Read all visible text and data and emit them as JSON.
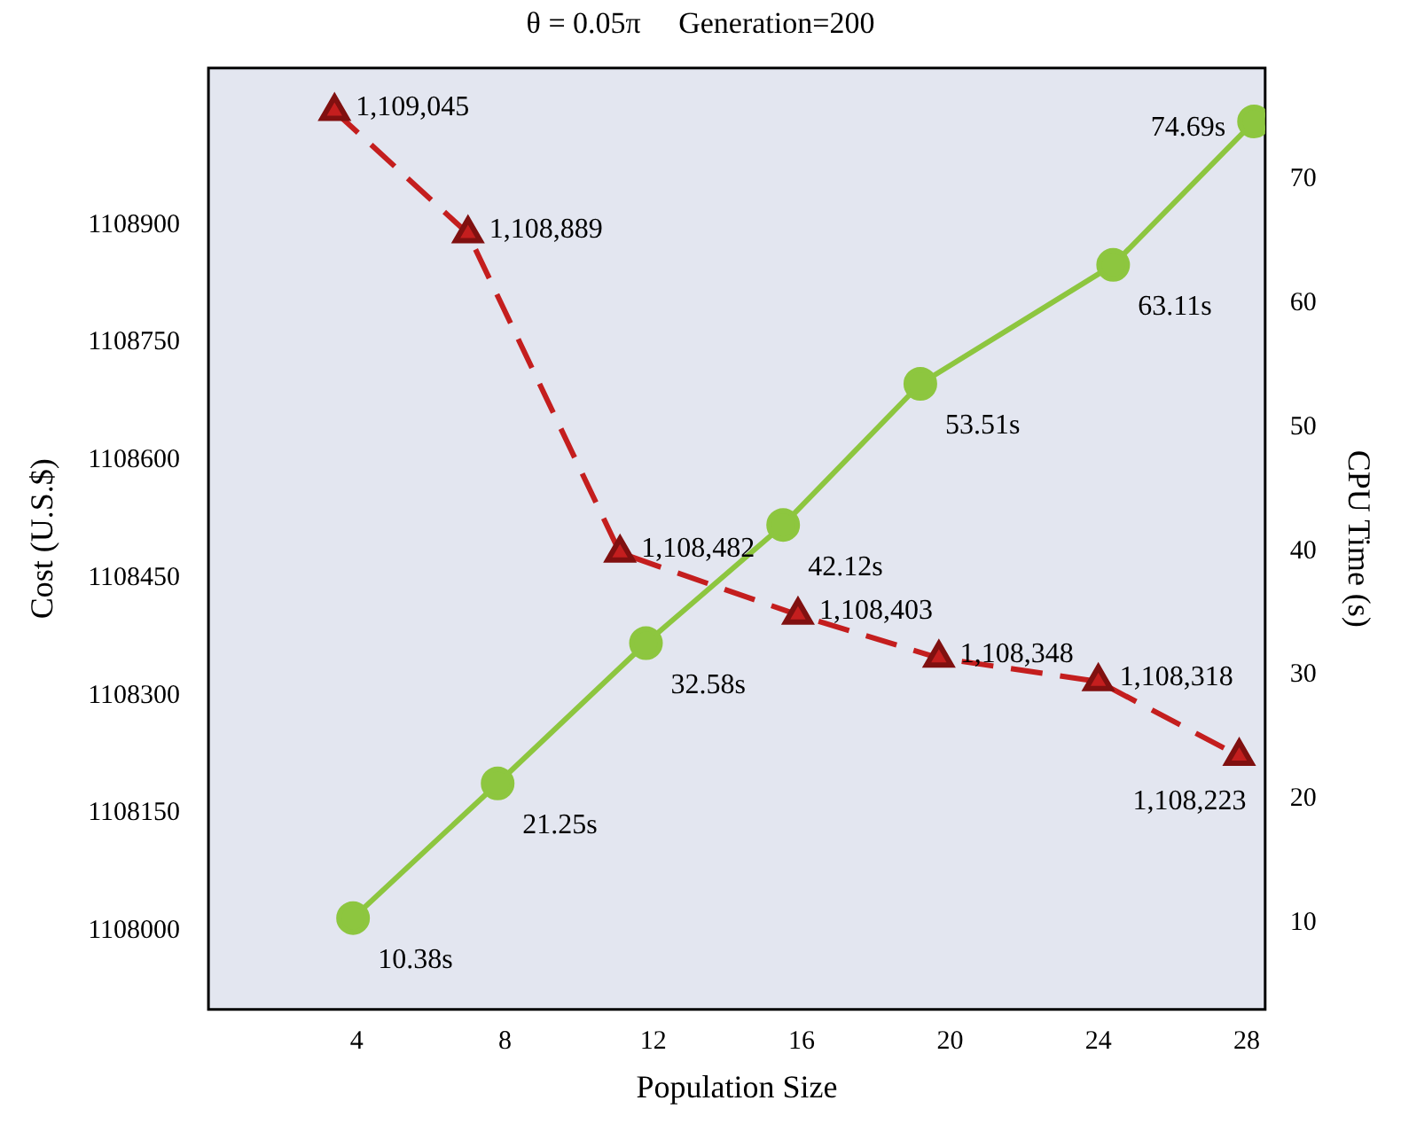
{
  "chart_data": {
    "type": "line",
    "title": "θ = 0.05π     Generation=200",
    "xlabel": "Population Size",
    "ylabel": "Cost (U.S.$)",
    "y2label": "CPU Time (s)",
    "xlim": [
      0,
      28.5
    ],
    "xticks": [
      4,
      8,
      12,
      16,
      20,
      24,
      28
    ],
    "ylim": [
      1107900,
      1109100
    ],
    "yticks": [
      1108000,
      1108150,
      1108300,
      1108450,
      1108600,
      1108750,
      1108900
    ],
    "y2lim": [
      3,
      79
    ],
    "y2ticks": [
      10,
      20,
      30,
      40,
      50,
      60,
      70
    ],
    "grid": false,
    "legend": false,
    "series": [
      {
        "color": "#c41e1e",
        "marker": "triangle",
        "line_style": "dashed",
        "x": [
          3.4,
          7.0,
          11.1,
          15.9,
          19.7,
          24.0,
          27.8
        ],
        "values": [
          1109045,
          1108889,
          1108482,
          1108403,
          1108348,
          1108318,
          1108223
        ],
        "value_labels": [
          "1,109,045",
          "1,108,889",
          "1,108,482",
          "1,108,403",
          "1,108,348",
          "1,108,318",
          "1,108,223"
        ]
      },
      {
        "color": "#8dc63f",
        "marker": "circle",
        "line_style": "solid",
        "axis": "y2",
        "x": [
          3.9,
          7.8,
          11.8,
          15.5,
          19.2,
          24.4,
          28.2
        ],
        "values": [
          10.38,
          21.25,
          32.58,
          42.12,
          53.51,
          63.11,
          74.69
        ],
        "value_labels": [
          "10.38s",
          "21.25s",
          "32.58s",
          "42.12s",
          "53.51s",
          "63.11s",
          "74.69s"
        ]
      }
    ]
  }
}
